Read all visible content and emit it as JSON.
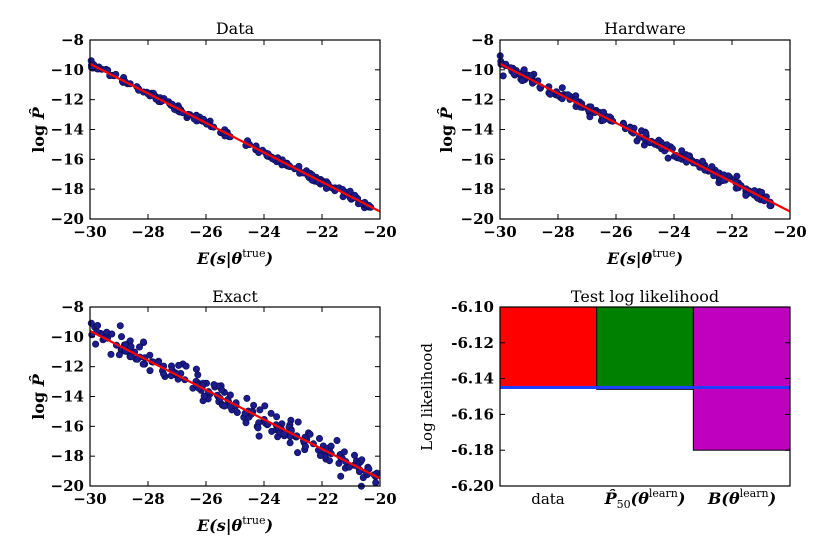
{
  "colors": {
    "points": "#1c1c8c",
    "fit_line": "#ff0000",
    "data_bar": "#ff0000",
    "p50_bar": "#008000",
    "b_bar": "#bf00bf",
    "reference_line": "#1f3fff"
  },
  "chart_data": [
    {
      "id": "data",
      "type": "scatter",
      "title": "Data",
      "xlabel": "E(s|θtrue)",
      "ylabel": "log P̂",
      "xlim": [
        -30,
        -20
      ],
      "ylim": [
        -20,
        -8
      ],
      "xticks": [
        "−30",
        "−28",
        "−26",
        "−24",
        "−22",
        "−20"
      ],
      "yticks": [
        "−8",
        "−10",
        "−12",
        "−14",
        "−16",
        "−18",
        "−20"
      ],
      "fit_line": {
        "x": [
          -30,
          -20
        ],
        "y": [
          -9.6,
          -19.5
        ]
      },
      "scatter_spread": 0.12,
      "x_range_points": [
        -30,
        -20.3
      ],
      "n_points": 200
    },
    {
      "id": "hardware",
      "type": "scatter",
      "title": "Hardware",
      "xlabel": "E(s|θtrue)",
      "ylabel": "log P̂",
      "xlim": [
        -30,
        -20
      ],
      "ylim": [
        -20,
        -8
      ],
      "xticks": [
        "−30",
        "−28",
        "−26",
        "−24",
        "−22",
        "−20"
      ],
      "yticks": [
        "−8",
        "−10",
        "−12",
        "−14",
        "−16",
        "−18",
        "−20"
      ],
      "fit_line": {
        "x": [
          -30,
          -20
        ],
        "y": [
          -9.6,
          -19.5
        ]
      },
      "scatter_spread": 0.2,
      "x_range_points": [
        -30,
        -20.4
      ],
      "n_points": 200
    },
    {
      "id": "exact",
      "type": "scatter",
      "title": "Exact",
      "xlabel": "E(s|θtrue)",
      "ylabel": "log P̂",
      "xlim": [
        -30,
        -20
      ],
      "ylim": [
        -20,
        -8
      ],
      "xticks": [
        "−30",
        "−28",
        "−26",
        "−24",
        "−22",
        "−20"
      ],
      "yticks": [
        "−8",
        "−10",
        "−12",
        "−14",
        "−16",
        "−18",
        "−20"
      ],
      "fit_line": {
        "x": [
          -30,
          -20
        ],
        "y": [
          -9.6,
          -19.5
        ]
      },
      "scatter_spread": 0.45,
      "x_range_points": [
        -30,
        -20.1
      ],
      "n_points": 220
    },
    {
      "id": "test_ll",
      "type": "bar",
      "title": "Test log likelihood",
      "ylabel": "Log likelihood",
      "ylim": [
        -6.2,
        -6.1
      ],
      "yticks": [
        "-6.10",
        "-6.12",
        "-6.14",
        "-6.16",
        "-6.18",
        "-6.20"
      ],
      "categories": [
        "data",
        "P̂50(θlearn)",
        "B(θlearn)"
      ],
      "values": [
        -6.145,
        -6.146,
        -6.18
      ],
      "reference_line": -6.145
    }
  ]
}
